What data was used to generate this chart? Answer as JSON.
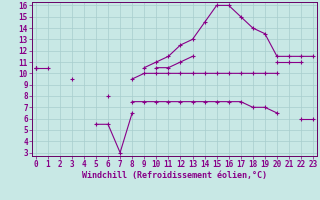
{
  "xlabel": "Windchill (Refroidissement éolien,°C)",
  "x": [
    0,
    1,
    2,
    3,
    4,
    5,
    6,
    7,
    8,
    9,
    10,
    11,
    12,
    13,
    14,
    15,
    16,
    17,
    18,
    19,
    20,
    21,
    22,
    23
  ],
  "line_max": [
    10.5,
    10.5,
    null,
    null,
    null,
    null,
    null,
    null,
    null,
    10.5,
    11.0,
    11.5,
    12.5,
    13.0,
    14.5,
    16.0,
    16.0,
    15.0,
    14.0,
    13.5,
    11.5,
    11.5,
    11.5,
    11.5
  ],
  "line_mean": [
    10.5,
    null,
    null,
    null,
    null,
    null,
    null,
    null,
    null,
    null,
    10.5,
    10.5,
    11.0,
    11.5,
    null,
    null,
    null,
    null,
    null,
    null,
    11.0,
    11.0,
    11.0,
    null
  ],
  "line_flat": [
    10.5,
    null,
    null,
    9.5,
    null,
    null,
    8.0,
    null,
    9.5,
    10.0,
    10.0,
    10.0,
    10.0,
    10.0,
    10.0,
    10.0,
    10.0,
    10.0,
    10.0,
    10.0,
    10.0,
    null,
    null,
    null
  ],
  "line_dip": [
    null,
    null,
    null,
    null,
    null,
    5.5,
    5.5,
    3.0,
    6.5,
    null,
    null,
    null,
    null,
    null,
    null,
    null,
    null,
    null,
    null,
    null,
    null,
    null,
    null,
    null
  ],
  "line_min": [
    null,
    null,
    null,
    null,
    null,
    null,
    null,
    null,
    7.5,
    7.5,
    7.5,
    7.5,
    7.5,
    7.5,
    7.5,
    7.5,
    7.5,
    7.5,
    7.0,
    7.0,
    6.5,
    null,
    6.0,
    6.0
  ],
  "bg_color": "#c8e8e5",
  "grid_color": "#a8cece",
  "line_color": "#880088",
  "ylim_min": 3,
  "ylim_max": 16,
  "xlim_min": 0,
  "xlim_max": 23,
  "yticks": [
    3,
    4,
    5,
    6,
    7,
    8,
    9,
    10,
    11,
    12,
    13,
    14,
    15,
    16
  ],
  "xticks": [
    0,
    1,
    2,
    3,
    4,
    5,
    6,
    7,
    8,
    9,
    10,
    11,
    12,
    13,
    14,
    15,
    16,
    17,
    18,
    19,
    20,
    21,
    22,
    23
  ],
  "tick_fontsize": 5.5,
  "xlabel_fontsize": 6.0,
  "lw": 0.8,
  "ms": 2.5
}
